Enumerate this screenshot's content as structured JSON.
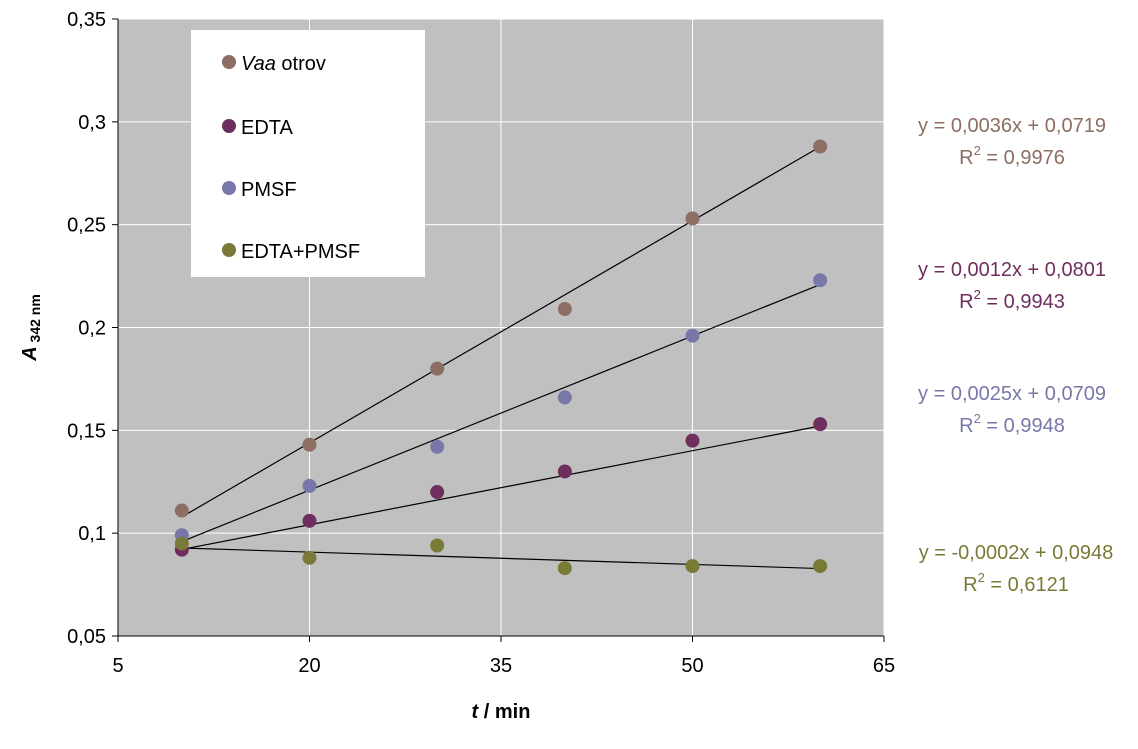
{
  "chart_data": {
    "type": "scatter",
    "xlabel": {
      "var": "t",
      "unit": " / min"
    },
    "ylabel": {
      "var": "A",
      "sub": "342 nm"
    },
    "xlim": [
      5,
      65
    ],
    "ylim": [
      0.05,
      0.35
    ],
    "xticks": [
      "5",
      "20",
      "35",
      "50",
      "65"
    ],
    "yticks": [
      "0,05",
      "0,1",
      "0,15",
      "0,2",
      "0,25",
      "0,3",
      "0,35"
    ],
    "grid": true,
    "legend_position": "top-left",
    "plot_background": "#c0c0c0",
    "series": [
      {
        "name": "Vaa otrov",
        "name_italic": "Vaa",
        "name_rest": " otrov",
        "color": "#8c6e62",
        "x": [
          10,
          20,
          30,
          40,
          50,
          60
        ],
        "y": [
          0.111,
          0.143,
          0.18,
          0.209,
          0.253,
          0.288
        ],
        "trend": {
          "slope": 0.0036,
          "intercept": 0.0719
        },
        "equation": "y = 0,0036x + 0,0719",
        "r2_value": " = 0,9976"
      },
      {
        "name": "EDTA",
        "color": "#6e2f5e",
        "x": [
          10,
          20,
          30,
          40,
          50,
          60
        ],
        "y": [
          0.092,
          0.106,
          0.12,
          0.13,
          0.145,
          0.153
        ],
        "trend": {
          "slope": 0.0012,
          "intercept": 0.0801
        },
        "equation": "y = 0,0012x + 0,0801",
        "r2_value": " = 0,9943"
      },
      {
        "name": "PMSF",
        "color": "#7878a8",
        "x": [
          10,
          20,
          30,
          40,
          50,
          60
        ],
        "y": [
          0.099,
          0.123,
          0.142,
          0.166,
          0.196,
          0.223
        ],
        "trend": {
          "slope": 0.0025,
          "intercept": 0.0709
        },
        "equation": "y = 0,0025x + 0,0709",
        "r2_value": " = 0,9948"
      },
      {
        "name": "EDTA+PMSF",
        "color": "#7a7a38",
        "x": [
          10,
          20,
          30,
          40,
          50,
          60
        ],
        "y": [
          0.095,
          0.088,
          0.094,
          0.083,
          0.084,
          0.084
        ],
        "trend": {
          "slope": -0.0002,
          "intercept": 0.0948
        },
        "equation": "y = -0,0002x + 0,0948",
        "r2_value": " = 0,6121"
      }
    ],
    "r2_symbol": "R",
    "r2_exponent": "2"
  }
}
